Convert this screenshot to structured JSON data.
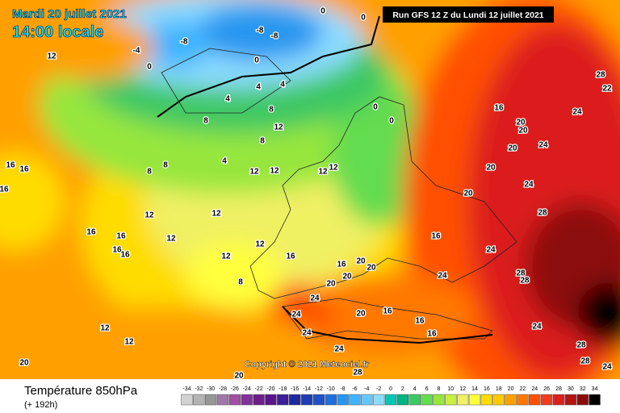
{
  "header": {
    "date": "Mardi 20 juillet 2021",
    "time": "14:00 locale",
    "run": "Run GFS 12 Z du Lundi 12 juillet 2021",
    "copyright": "Copyright © 2021 Meteociel.fr"
  },
  "legend": {
    "title": "Température 850hPa",
    "lead": "(+ 192h)",
    "ticks": [
      -34,
      -32,
      -30,
      -28,
      -26,
      -24,
      -22,
      -20,
      -18,
      -16,
      -14,
      -12,
      -10,
      -8,
      -6,
      -4,
      -2,
      0,
      2,
      4,
      6,
      8,
      10,
      12,
      14,
      16,
      18,
      20,
      22,
      24,
      26,
      28,
      30,
      32,
      34
    ],
    "colors": [
      "#d2d2d2",
      "#b4b4b4",
      "#969696",
      "#a078a8",
      "#a050a0",
      "#82329b",
      "#6e1e8c",
      "#5a148c",
      "#3c1e96",
      "#1e28a0",
      "#1e3cb4",
      "#1e50c8",
      "#1e6edc",
      "#2896f0",
      "#3cb4ff",
      "#64c8ff",
      "#8cdcff",
      "#00c8b4",
      "#00b482",
      "#3cc864",
      "#64dc50",
      "#96e63c",
      "#c8f03c",
      "#f0f064",
      "#ffff3c",
      "#ffdc00",
      "#ffc800",
      "#ffa000",
      "#ff7800",
      "#ff5000",
      "#f03c1e",
      "#dc1e1e",
      "#b41414",
      "#8c0a0a",
      "#000000"
    ]
  },
  "map": {
    "contour_labels": [
      12,
      -4,
      -8,
      -8,
      -8,
      0,
      0,
      0,
      0,
      4,
      4,
      4,
      8,
      8,
      12,
      8,
      4,
      8,
      8,
      16,
      16,
      16,
      12,
      12,
      12,
      12,
      12,
      12,
      16,
      16,
      16,
      16,
      12,
      12,
      12,
      8,
      16,
      16,
      20,
      20,
      20,
      20,
      16,
      24,
      24,
      24,
      24,
      24,
      20,
      16,
      16,
      16,
      12,
      12,
      20,
      20,
      28,
      24,
      24,
      28,
      28,
      24,
      16,
      20,
      20,
      20,
      24,
      20,
      20,
      24,
      28,
      28,
      28,
      28,
      22,
      24,
      0,
      0
    ]
  }
}
